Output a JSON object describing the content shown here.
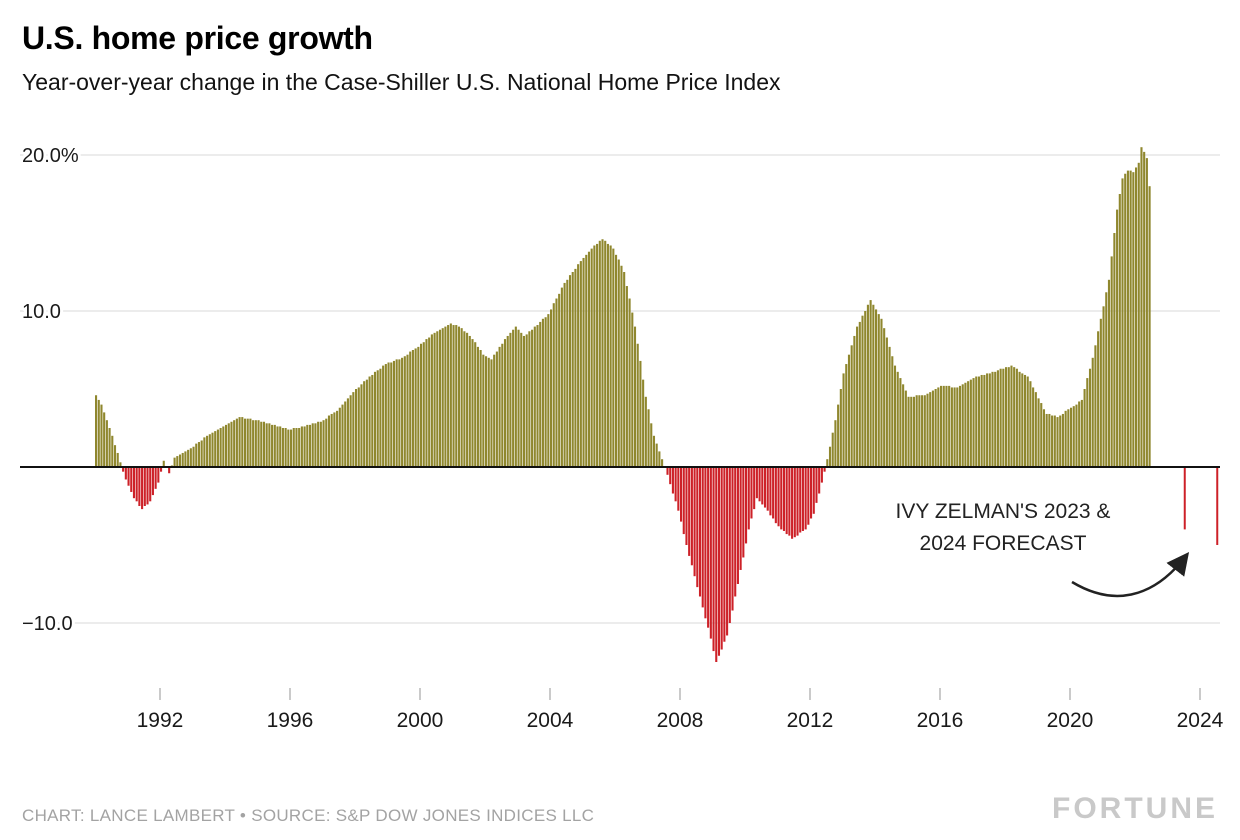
{
  "chart_data": {
    "type": "bar",
    "title": "U.S. home price growth",
    "subtitle": "Year-over-year change in the Case-Shiller U.S. National Home Price Index",
    "unit": "percent, year-over-year",
    "series_name": "Case-Shiller U.S. National Home Price Index YoY % change",
    "start": "1990-01",
    "frequency": "monthly",
    "ylim": [
      -14,
      21
    ],
    "grid": "horizontal",
    "y_axis": {
      "ticks": [
        {
          "value": 20,
          "label": "20.0%"
        },
        {
          "value": 10,
          "label": "10.0"
        },
        {
          "value": 0,
          "label": ""
        },
        {
          "value": -10,
          "label": "−10.0"
        }
      ]
    },
    "x_axis": {
      "tick_years": [
        1992,
        1996,
        2000,
        2004,
        2008,
        2012,
        2016,
        2020,
        2024
      ]
    },
    "colors": {
      "positive": "#8f872e",
      "negative": "#cd2128",
      "grid": "#d9d9d9",
      "axis": "#111111"
    },
    "values": [
      4.6,
      4.3,
      4.0,
      3.5,
      3.0,
      2.5,
      2.0,
      1.4,
      0.9,
      0.3,
      -0.3,
      -0.8,
      -1.2,
      -1.6,
      -2.0,
      -2.2,
      -2.5,
      -2.7,
      -2.5,
      -2.4,
      -2.2,
      -1.8,
      -1.4,
      -1.0,
      -0.3,
      0.4,
      0.0,
      -0.4,
      0.1,
      0.6,
      0.7,
      0.8,
      0.9,
      1.0,
      1.1,
      1.2,
      1.3,
      1.5,
      1.6,
      1.7,
      1.9,
      2.0,
      2.1,
      2.2,
      2.3,
      2.4,
      2.5,
      2.6,
      2.7,
      2.8,
      2.9,
      3.0,
      3.1,
      3.2,
      3.2,
      3.1,
      3.1,
      3.1,
      3.0,
      3.0,
      3.0,
      2.9,
      2.9,
      2.8,
      2.8,
      2.7,
      2.7,
      2.6,
      2.6,
      2.5,
      2.5,
      2.4,
      2.4,
      2.5,
      2.5,
      2.5,
      2.6,
      2.6,
      2.7,
      2.7,
      2.8,
      2.8,
      2.9,
      2.9,
      3.0,
      3.1,
      3.3,
      3.4,
      3.5,
      3.6,
      3.8,
      4.0,
      4.2,
      4.4,
      4.6,
      4.8,
      5.0,
      5.1,
      5.3,
      5.5,
      5.6,
      5.8,
      5.9,
      6.1,
      6.2,
      6.3,
      6.5,
      6.6,
      6.7,
      6.7,
      6.8,
      6.9,
      6.9,
      7.0,
      7.1,
      7.2,
      7.4,
      7.5,
      7.6,
      7.7,
      7.9,
      8.0,
      8.2,
      8.3,
      8.5,
      8.6,
      8.7,
      8.8,
      8.9,
      9.0,
      9.1,
      9.2,
      9.1,
      9.1,
      9.0,
      8.9,
      8.7,
      8.6,
      8.4,
      8.2,
      8.0,
      7.7,
      7.5,
      7.2,
      7.1,
      7.0,
      6.9,
      7.2,
      7.4,
      7.7,
      7.9,
      8.2,
      8.4,
      8.6,
      8.8,
      9.0,
      8.8,
      8.6,
      8.4,
      8.5,
      8.7,
      8.8,
      9.0,
      9.1,
      9.3,
      9.5,
      9.6,
      9.8,
      10.1,
      10.5,
      10.8,
      11.1,
      11.5,
      11.8,
      12.0,
      12.3,
      12.5,
      12.7,
      13.0,
      13.2,
      13.4,
      13.6,
      13.8,
      14.0,
      14.2,
      14.3,
      14.5,
      14.6,
      14.5,
      14.3,
      14.2,
      14.0,
      13.6,
      13.3,
      12.9,
      12.5,
      11.6,
      10.8,
      9.9,
      9.0,
      7.9,
      6.8,
      5.6,
      4.5,
      3.7,
      2.8,
      2.0,
      1.5,
      1.0,
      0.5,
      0.0,
      -0.5,
      -1.1,
      -1.7,
      -2.2,
      -2.8,
      -3.5,
      -4.3,
      -5.0,
      -5.7,
      -6.3,
      -7.0,
      -7.7,
      -8.3,
      -9.0,
      -9.7,
      -10.3,
      -11.0,
      -11.8,
      -12.5,
      -12.1,
      -11.7,
      -11.2,
      -10.8,
      -10.0,
      -9.2,
      -8.3,
      -7.5,
      -6.6,
      -5.8,
      -4.9,
      -4.0,
      -3.3,
      -2.7,
      -2.0,
      -2.2,
      -2.4,
      -2.6,
      -2.8,
      -3.1,
      -3.3,
      -3.6,
      -3.8,
      -4.0,
      -4.1,
      -4.3,
      -4.4,
      -4.6,
      -4.5,
      -4.4,
      -4.2,
      -4.1,
      -4.0,
      -3.7,
      -3.3,
      -3.0,
      -2.3,
      -1.7,
      -1.0,
      -0.3,
      0.5,
      1.3,
      2.2,
      3.0,
      4.0,
      5.0,
      6.0,
      6.6,
      7.2,
      7.8,
      8.4,
      9.0,
      9.3,
      9.7,
      10.0,
      10.4,
      10.7,
      10.4,
      10.1,
      9.8,
      9.5,
      8.9,
      8.3,
      7.7,
      7.1,
      6.5,
      6.1,
      5.7,
      5.3,
      4.9,
      4.5,
      4.5,
      4.5,
      4.6,
      4.6,
      4.6,
      4.6,
      4.7,
      4.8,
      4.9,
      5.0,
      5.1,
      5.2,
      5.2,
      5.2,
      5.2,
      5.1,
      5.1,
      5.1,
      5.2,
      5.3,
      5.4,
      5.5,
      5.6,
      5.7,
      5.8,
      5.8,
      5.9,
      5.9,
      6.0,
      6.0,
      6.1,
      6.1,
      6.2,
      6.3,
      6.3,
      6.4,
      6.4,
      6.5,
      6.4,
      6.3,
      6.1,
      6.0,
      5.9,
      5.8,
      5.5,
      5.1,
      4.8,
      4.4,
      4.1,
      3.7,
      3.4,
      3.4,
      3.3,
      3.3,
      3.2,
      3.3,
      3.4,
      3.6,
      3.7,
      3.8,
      3.9,
      4.0,
      4.2,
      4.3,
      5.0,
      5.7,
      6.3,
      7.0,
      7.8,
      8.7,
      9.5,
      10.3,
      11.2,
      12.0,
      13.5,
      15.0,
      16.5,
      17.5,
      18.5,
      18.8,
      19.0,
      19.0,
      18.9,
      19.2,
      19.5,
      20.5,
      20.2,
      19.8,
      18.0
    ],
    "forecast": {
      "annotation": [
        "IVY ZELMAN'S 2023 &",
        "2024 FORECAST"
      ],
      "points": [
        {
          "year": 2023,
          "value": -4.0
        },
        {
          "year": 2024,
          "value": -5.0
        }
      ]
    }
  },
  "footer": {
    "credit": "CHART: LANCE LAMBERT • SOURCE: S&P DOW JONES INDICES LLC",
    "logo": "FORTUNE"
  }
}
